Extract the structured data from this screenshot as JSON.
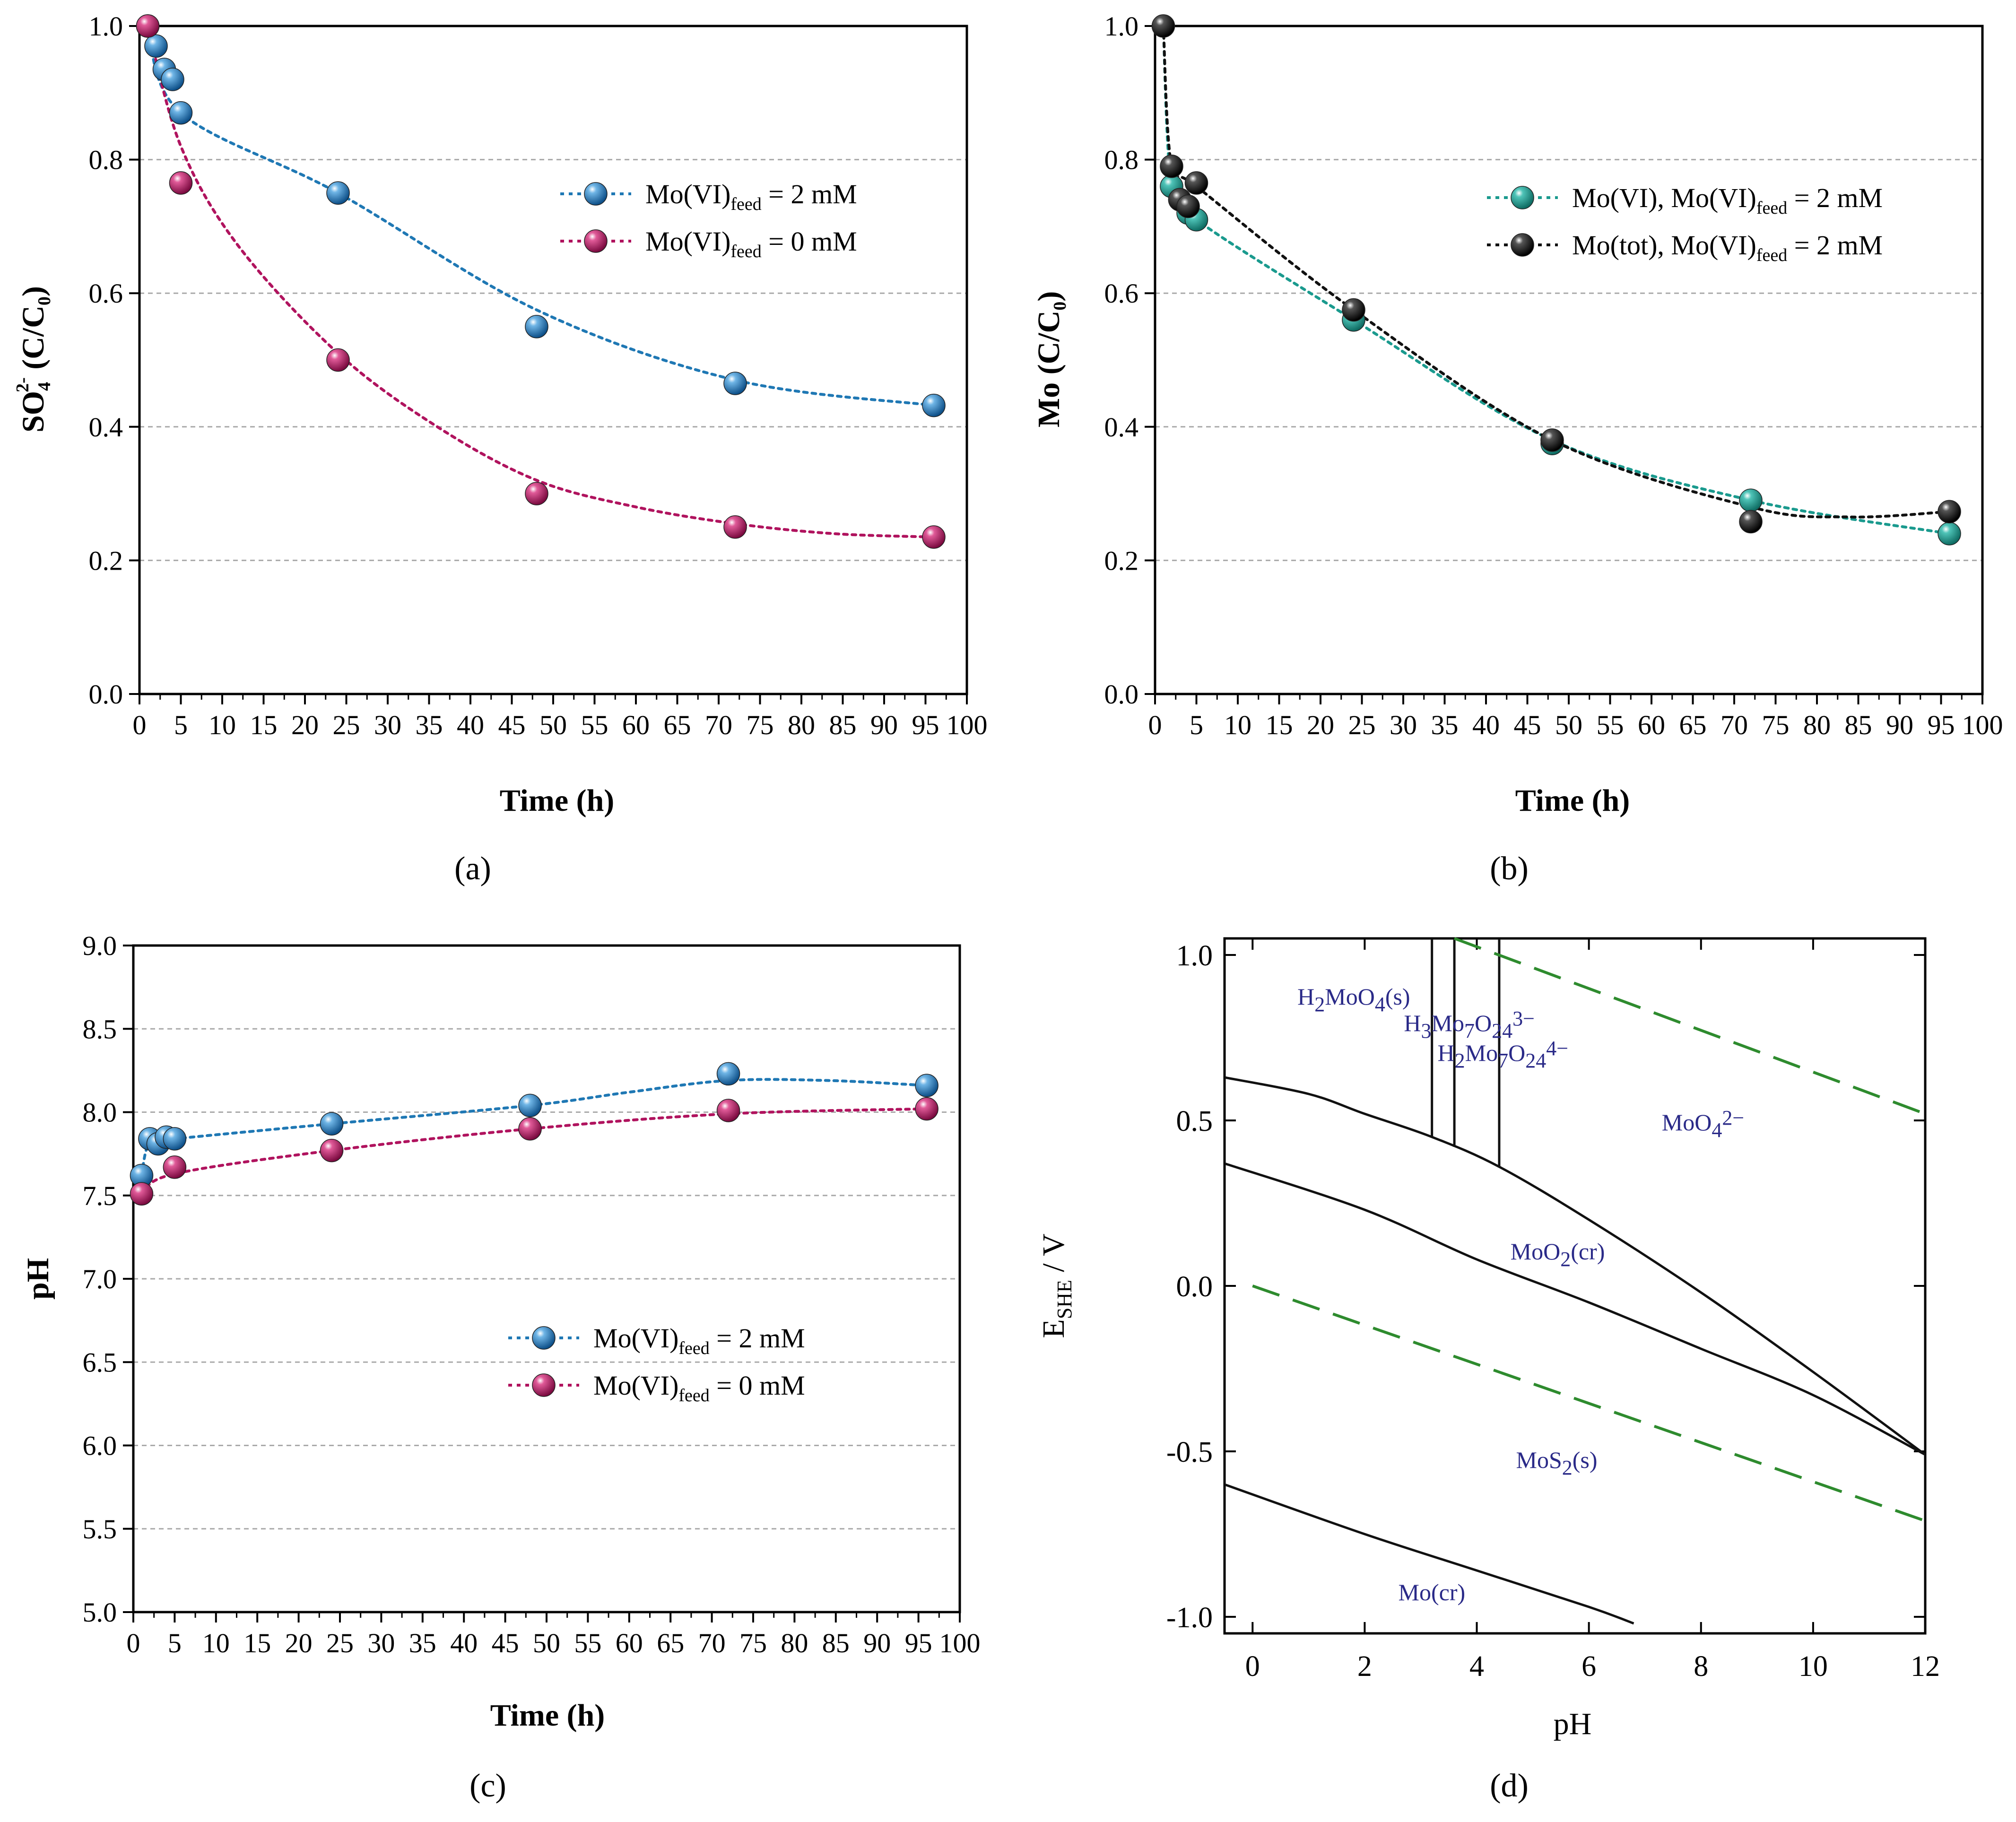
{
  "chart_data": [
    {
      "id": "a",
      "type": "scatter",
      "panel_label": "(a)",
      "xlabel": "Time (h)",
      "ylabel": "SO4 2- (C/C0)",
      "ylabel_main": "SO",
      "ylabel_sub": "4",
      "ylabel_sup": "2-",
      "ylabel_rest": " (C/C",
      "ylabel_sub2": "0",
      "ylabel_end": ")",
      "xlim": [
        0,
        100
      ],
      "ylim": [
        0,
        1
      ],
      "xticks": [
        "0",
        "5",
        "10",
        "15",
        "20",
        "25",
        "30",
        "35",
        "40",
        "45",
        "50",
        "55",
        "60",
        "65",
        "70",
        "75",
        "80",
        "85",
        "90",
        "95",
        "100"
      ],
      "yticks": [
        "0.0",
        "0.2",
        "0.4",
        "0.6",
        "0.8",
        "1.0"
      ],
      "grid": "horizontal dashed",
      "legend_position": "upper-right",
      "series": [
        {
          "name": "Mo(VI)feed = 2 mM",
          "label_main": "Mo(VI)",
          "label_sub": "feed",
          "label_rest": " = 2 mM",
          "color": "#1f78b4",
          "x": [
            1,
            2,
            3,
            4,
            5,
            24,
            48,
            72,
            96
          ],
          "y": [
            1.0,
            0.97,
            0.935,
            0.92,
            0.87,
            0.75,
            0.55,
            0.465,
            0.432
          ],
          "trend_x": [
            1,
            5,
            24,
            48,
            72,
            96
          ],
          "trend_y": [
            1.0,
            0.87,
            0.75,
            0.575,
            0.47,
            0.432
          ]
        },
        {
          "name": "Mo(VI)feed = 0 mM",
          "label_main": "Mo(VI)",
          "label_sub": "feed",
          "label_rest": " = 0 mM",
          "color": "#b0135e",
          "x": [
            1,
            5,
            24,
            48,
            72,
            96
          ],
          "y": [
            1.0,
            0.765,
            0.5,
            0.3,
            0.25,
            0.235
          ],
          "trend_x": [
            1,
            5,
            12,
            24,
            36,
            48,
            60,
            72,
            84,
            96
          ],
          "trend_y": [
            1.0,
            0.82,
            0.67,
            0.51,
            0.4,
            0.32,
            0.28,
            0.255,
            0.24,
            0.235
          ]
        }
      ]
    },
    {
      "id": "b",
      "type": "scatter",
      "panel_label": "(b)",
      "xlabel": "Time (h)",
      "ylabel": "Mo (C/C0)",
      "ylabel_main": "Mo (C/C",
      "ylabel_sub": "0",
      "ylabel_end": ")",
      "xlim": [
        0,
        100
      ],
      "ylim": [
        0,
        1
      ],
      "xticks": [
        "0",
        "5",
        "10",
        "15",
        "20",
        "25",
        "30",
        "35",
        "40",
        "45",
        "50",
        "55",
        "60",
        "65",
        "70",
        "75",
        "80",
        "85",
        "90",
        "95",
        "100"
      ],
      "yticks": [
        "0.0",
        "0.2",
        "0.4",
        "0.6",
        "0.8",
        "1.0"
      ],
      "grid": "horizontal dashed",
      "legend_position": "upper-right",
      "series": [
        {
          "name": "Mo(VI), Mo(VI)feed = 2 mM",
          "label_main": "Mo(VI), Mo(VI)",
          "label_sub": "feed",
          "label_rest": " = 2 mM",
          "color": "#1a9a8e",
          "x": [
            2,
            3,
            4,
            5,
            24,
            48,
            72,
            96
          ],
          "y": [
            0.76,
            0.74,
            0.72,
            0.71,
            0.56,
            0.375,
            0.29,
            0.24
          ],
          "trend_x": [
            1,
            2,
            5,
            24,
            48,
            72,
            96
          ],
          "trend_y": [
            1.0,
            0.76,
            0.71,
            0.56,
            0.38,
            0.29,
            0.24
          ]
        },
        {
          "name": "Mo(tot), Mo(VI)feed = 2 mM",
          "label_main": "Mo(tot), Mo(VI)",
          "label_sub": "feed",
          "label_rest": " = 2 mM",
          "color": "#111111",
          "x": [
            1,
            2,
            3,
            4,
            5,
            24,
            48,
            72,
            96
          ],
          "y": [
            1.0,
            0.79,
            0.74,
            0.73,
            0.765,
            0.575,
            0.38,
            0.258,
            0.273
          ],
          "trend_x": [
            1,
            2,
            5,
            24,
            48,
            72,
            84,
            96
          ],
          "trend_y": [
            1.0,
            0.79,
            0.76,
            0.575,
            0.38,
            0.28,
            0.265,
            0.273
          ]
        }
      ]
    },
    {
      "id": "c",
      "type": "scatter",
      "panel_label": "(c)",
      "xlabel": "Time (h)",
      "ylabel": "pH",
      "xlim": [
        0,
        100
      ],
      "ylim": [
        5,
        9
      ],
      "xticks": [
        "0",
        "5",
        "10",
        "15",
        "20",
        "25",
        "30",
        "35",
        "40",
        "45",
        "50",
        "55",
        "60",
        "65",
        "70",
        "75",
        "80",
        "85",
        "90",
        "95",
        "100"
      ],
      "yticks": [
        "5.0",
        "5.5",
        "6.0",
        "6.5",
        "7.0",
        "7.5",
        "8.0",
        "8.5",
        "9.0"
      ],
      "grid": "horizontal dashed",
      "legend_position": "center-right",
      "series": [
        {
          "name": "Mo(VI)feed = 2 mM",
          "label_main": "Mo(VI)",
          "label_sub": "feed",
          "label_rest": " = 2 mM",
          "color": "#1f78b4",
          "x": [
            1,
            2,
            3,
            4,
            5,
            24,
            48,
            72,
            96
          ],
          "y": [
            7.62,
            7.84,
            7.81,
            7.85,
            7.84,
            7.93,
            8.04,
            8.23,
            8.16
          ],
          "trend_x": [
            1,
            2,
            5,
            24,
            48,
            60,
            72,
            84,
            96
          ],
          "trend_y": [
            7.62,
            7.82,
            7.84,
            7.93,
            8.04,
            8.12,
            8.19,
            8.19,
            8.16
          ]
        },
        {
          "name": "Mo(VI)feed = 0 mM",
          "label_main": "Mo(VI)",
          "label_sub": "feed",
          "label_rest": " = 0 mM",
          "color": "#b0135e",
          "x": [
            1,
            5,
            24,
            48,
            72,
            96
          ],
          "y": [
            7.51,
            7.67,
            7.77,
            7.9,
            8.01,
            8.02
          ],
          "trend_x": [
            1,
            5,
            24,
            48,
            72,
            96
          ],
          "trend_y": [
            7.51,
            7.63,
            7.77,
            7.9,
            7.99,
            8.02
          ]
        }
      ]
    },
    {
      "id": "d",
      "type": "line",
      "panel_label": "(d)",
      "xlabel": "pH",
      "ylabel": "E_SHE / V",
      "ylabel_main": "E",
      "ylabel_sub": "SHE",
      "ylabel_rest": " / V",
      "xlim": [
        -0.5,
        12
      ],
      "ylim": [
        -1.05,
        1.05
      ],
      "xticks": [
        "0",
        "2",
        "4",
        "6",
        "8",
        "10",
        "12"
      ],
      "yticks": [
        "-1.0",
        "-0.5",
        "0.0",
        "0.5",
        "1.0"
      ],
      "region_labels": [
        {
          "text": "H2MoO4(s)",
          "parts": [
            "H",
            "2",
            "MoO",
            "4",
            "(s)"
          ],
          "x": 0.8,
          "y": 0.85
        },
        {
          "text": "H3Mo7O24 3-",
          "parts": [
            "H",
            "3",
            "Mo",
            "7",
            "O",
            "24",
            "3−"
          ],
          "x": 2.7,
          "y": 0.77
        },
        {
          "text": "H2Mo7O24 4-",
          "parts": [
            "H",
            "2",
            "Mo",
            "7",
            "O",
            "24",
            "4−"
          ],
          "x": 3.3,
          "y": 0.68
        },
        {
          "text": "MoO4 2-",
          "parts": [
            "MoO",
            "4",
            "2−"
          ],
          "x": 7.3,
          "y": 0.47
        },
        {
          "text": "MoO2(cr)",
          "parts": [
            "MoO",
            "2",
            "(cr)"
          ],
          "x": 4.6,
          "y": 0.08
        },
        {
          "text": "MoS2(s)",
          "parts": [
            "MoS",
            "2",
            "(s)"
          ],
          "x": 4.7,
          "y": -0.55
        },
        {
          "text": "Mo(cr)",
          "parts": [
            "Mo(cr)"
          ],
          "x": 2.6,
          "y": -0.95
        }
      ],
      "boundaries": [
        {
          "name": "upper-boundary",
          "style": "solid",
          "x": [
            -0.5,
            1,
            2,
            3.2,
            4.4,
            6,
            8,
            10,
            12
          ],
          "y": [
            0.63,
            0.58,
            0.52,
            0.45,
            0.36,
            0.2,
            -0.02,
            -0.26,
            -0.51
          ]
        },
        {
          "name": "middle-boundary",
          "style": "solid",
          "x": [
            -0.5,
            2,
            4,
            6,
            8,
            10,
            12
          ],
          "y": [
            0.37,
            0.23,
            0.08,
            -0.05,
            -0.19,
            -0.33,
            -0.51
          ]
        },
        {
          "name": "lower-boundary",
          "style": "solid",
          "x": [
            -0.5,
            2,
            4,
            6,
            6.8
          ],
          "y": [
            -0.6,
            -0.75,
            -0.86,
            -0.97,
            -1.02
          ]
        },
        {
          "name": "vertical-boundary-1",
          "style": "solid",
          "x": [
            3.2,
            3.2
          ],
          "y": [
            0.45,
            1.05
          ]
        },
        {
          "name": "vertical-boundary-2",
          "style": "solid",
          "x": [
            3.6,
            3.6
          ],
          "y": [
            0.42,
            1.05
          ]
        },
        {
          "name": "vertical-boundary-3",
          "style": "solid",
          "x": [
            4.4,
            4.4
          ],
          "y": [
            0.36,
            1.05
          ]
        },
        {
          "name": "water-upper",
          "style": "dashed",
          "x": [
            3.6,
            12
          ],
          "y": [
            1.05,
            0.52
          ]
        },
        {
          "name": "water-lower",
          "style": "dashed",
          "x": [
            0,
            12
          ],
          "y": [
            0.0,
            -0.71
          ]
        }
      ],
      "boundary_color": "#111111",
      "water_line_color": "#2e8b2e"
    }
  ]
}
